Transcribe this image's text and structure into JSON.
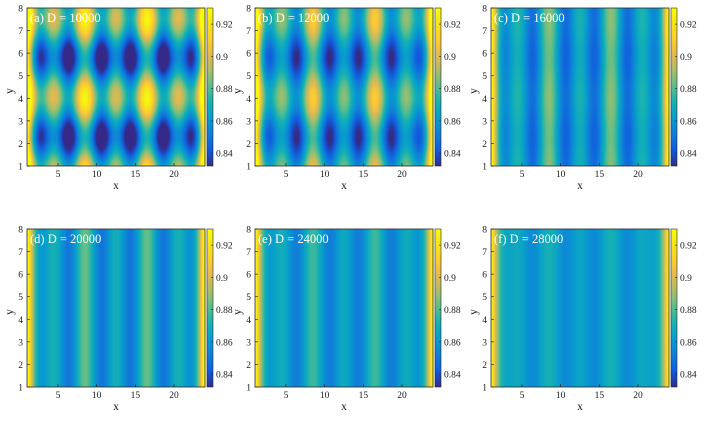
{
  "colorbar": {
    "ticks": [
      "0.84",
      "0.86",
      "0.88",
      "0.9",
      "0.92"
    ],
    "range": [
      0.832,
      0.93
    ]
  },
  "chart_data": [
    {
      "type": "heatmap",
      "title": "(a) D = 10000",
      "D": 10000,
      "xlabel": "x",
      "ylabel": "y",
      "xlim": [
        1,
        24
      ],
      "ylim": [
        1,
        8
      ],
      "xticks": [
        5,
        10,
        15,
        20
      ],
      "yticks": [
        1,
        2,
        3,
        4,
        5,
        6,
        7,
        8
      ],
      "clim": [
        0.832,
        0.93
      ],
      "mean": 0.867,
      "amp_x": 0.022,
      "amp_y": 0.028,
      "edge": 0.065
    },
    {
      "type": "heatmap",
      "title": "(b) D = 12000",
      "D": 12000,
      "xlabel": "x",
      "ylabel": "y",
      "xlim": [
        1,
        24
      ],
      "ylim": [
        1,
        8
      ],
      "xticks": [
        5,
        10,
        15,
        20
      ],
      "yticks": [
        1,
        2,
        3,
        4,
        5,
        6,
        7,
        8
      ],
      "clim": [
        0.832,
        0.93
      ],
      "mean": 0.865,
      "amp_x": 0.02,
      "amp_y": 0.016,
      "edge": 0.065
    },
    {
      "type": "heatmap",
      "title": "(c) D = 16000",
      "D": 16000,
      "xlabel": "x",
      "ylabel": "y",
      "xlim": [
        1,
        24
      ],
      "ylim": [
        1,
        8
      ],
      "xticks": [
        5,
        10,
        15,
        20
      ],
      "yticks": [
        1,
        2,
        3,
        4,
        5,
        6,
        7,
        8
      ],
      "clim": [
        0.832,
        0.93
      ],
      "mean": 0.862,
      "amp_x": 0.016,
      "amp_y": 0.002,
      "edge": 0.06
    },
    {
      "type": "heatmap",
      "title": "(d) D = 20000",
      "D": 20000,
      "xlabel": "x",
      "ylabel": "y",
      "xlim": [
        1,
        24
      ],
      "ylim": [
        1,
        8
      ],
      "xticks": [
        5,
        10,
        15,
        20
      ],
      "yticks": [
        1,
        2,
        3,
        4,
        5,
        6,
        7,
        8
      ],
      "clim": [
        0.832,
        0.93
      ],
      "mean": 0.863,
      "amp_x": 0.013,
      "amp_y": 0.0,
      "edge": 0.065
    },
    {
      "type": "heatmap",
      "title": "(e) D = 24000",
      "D": 24000,
      "xlabel": "x",
      "ylabel": "y",
      "xlim": [
        1,
        24
      ],
      "ylim": [
        1,
        8
      ],
      "xticks": [
        5,
        10,
        15,
        20
      ],
      "yticks": [
        1,
        2,
        3,
        4,
        5,
        6,
        7,
        8
      ],
      "clim": [
        0.832,
        0.93
      ],
      "mean": 0.862,
      "amp_x": 0.01,
      "amp_y": 0.0,
      "edge": 0.065
    },
    {
      "type": "heatmap",
      "title": "(f) D = 28000",
      "D": 28000,
      "xlabel": "x",
      "ylabel": "y",
      "xlim": [
        1,
        24
      ],
      "ylim": [
        1,
        8
      ],
      "xticks": [
        5,
        10,
        15,
        20
      ],
      "yticks": [
        1,
        2,
        3,
        4,
        5,
        6,
        7,
        8
      ],
      "clim": [
        0.832,
        0.93
      ],
      "mean": 0.862,
      "amp_x": 0.006,
      "amp_y": 0.0,
      "edge": 0.065
    }
  ]
}
